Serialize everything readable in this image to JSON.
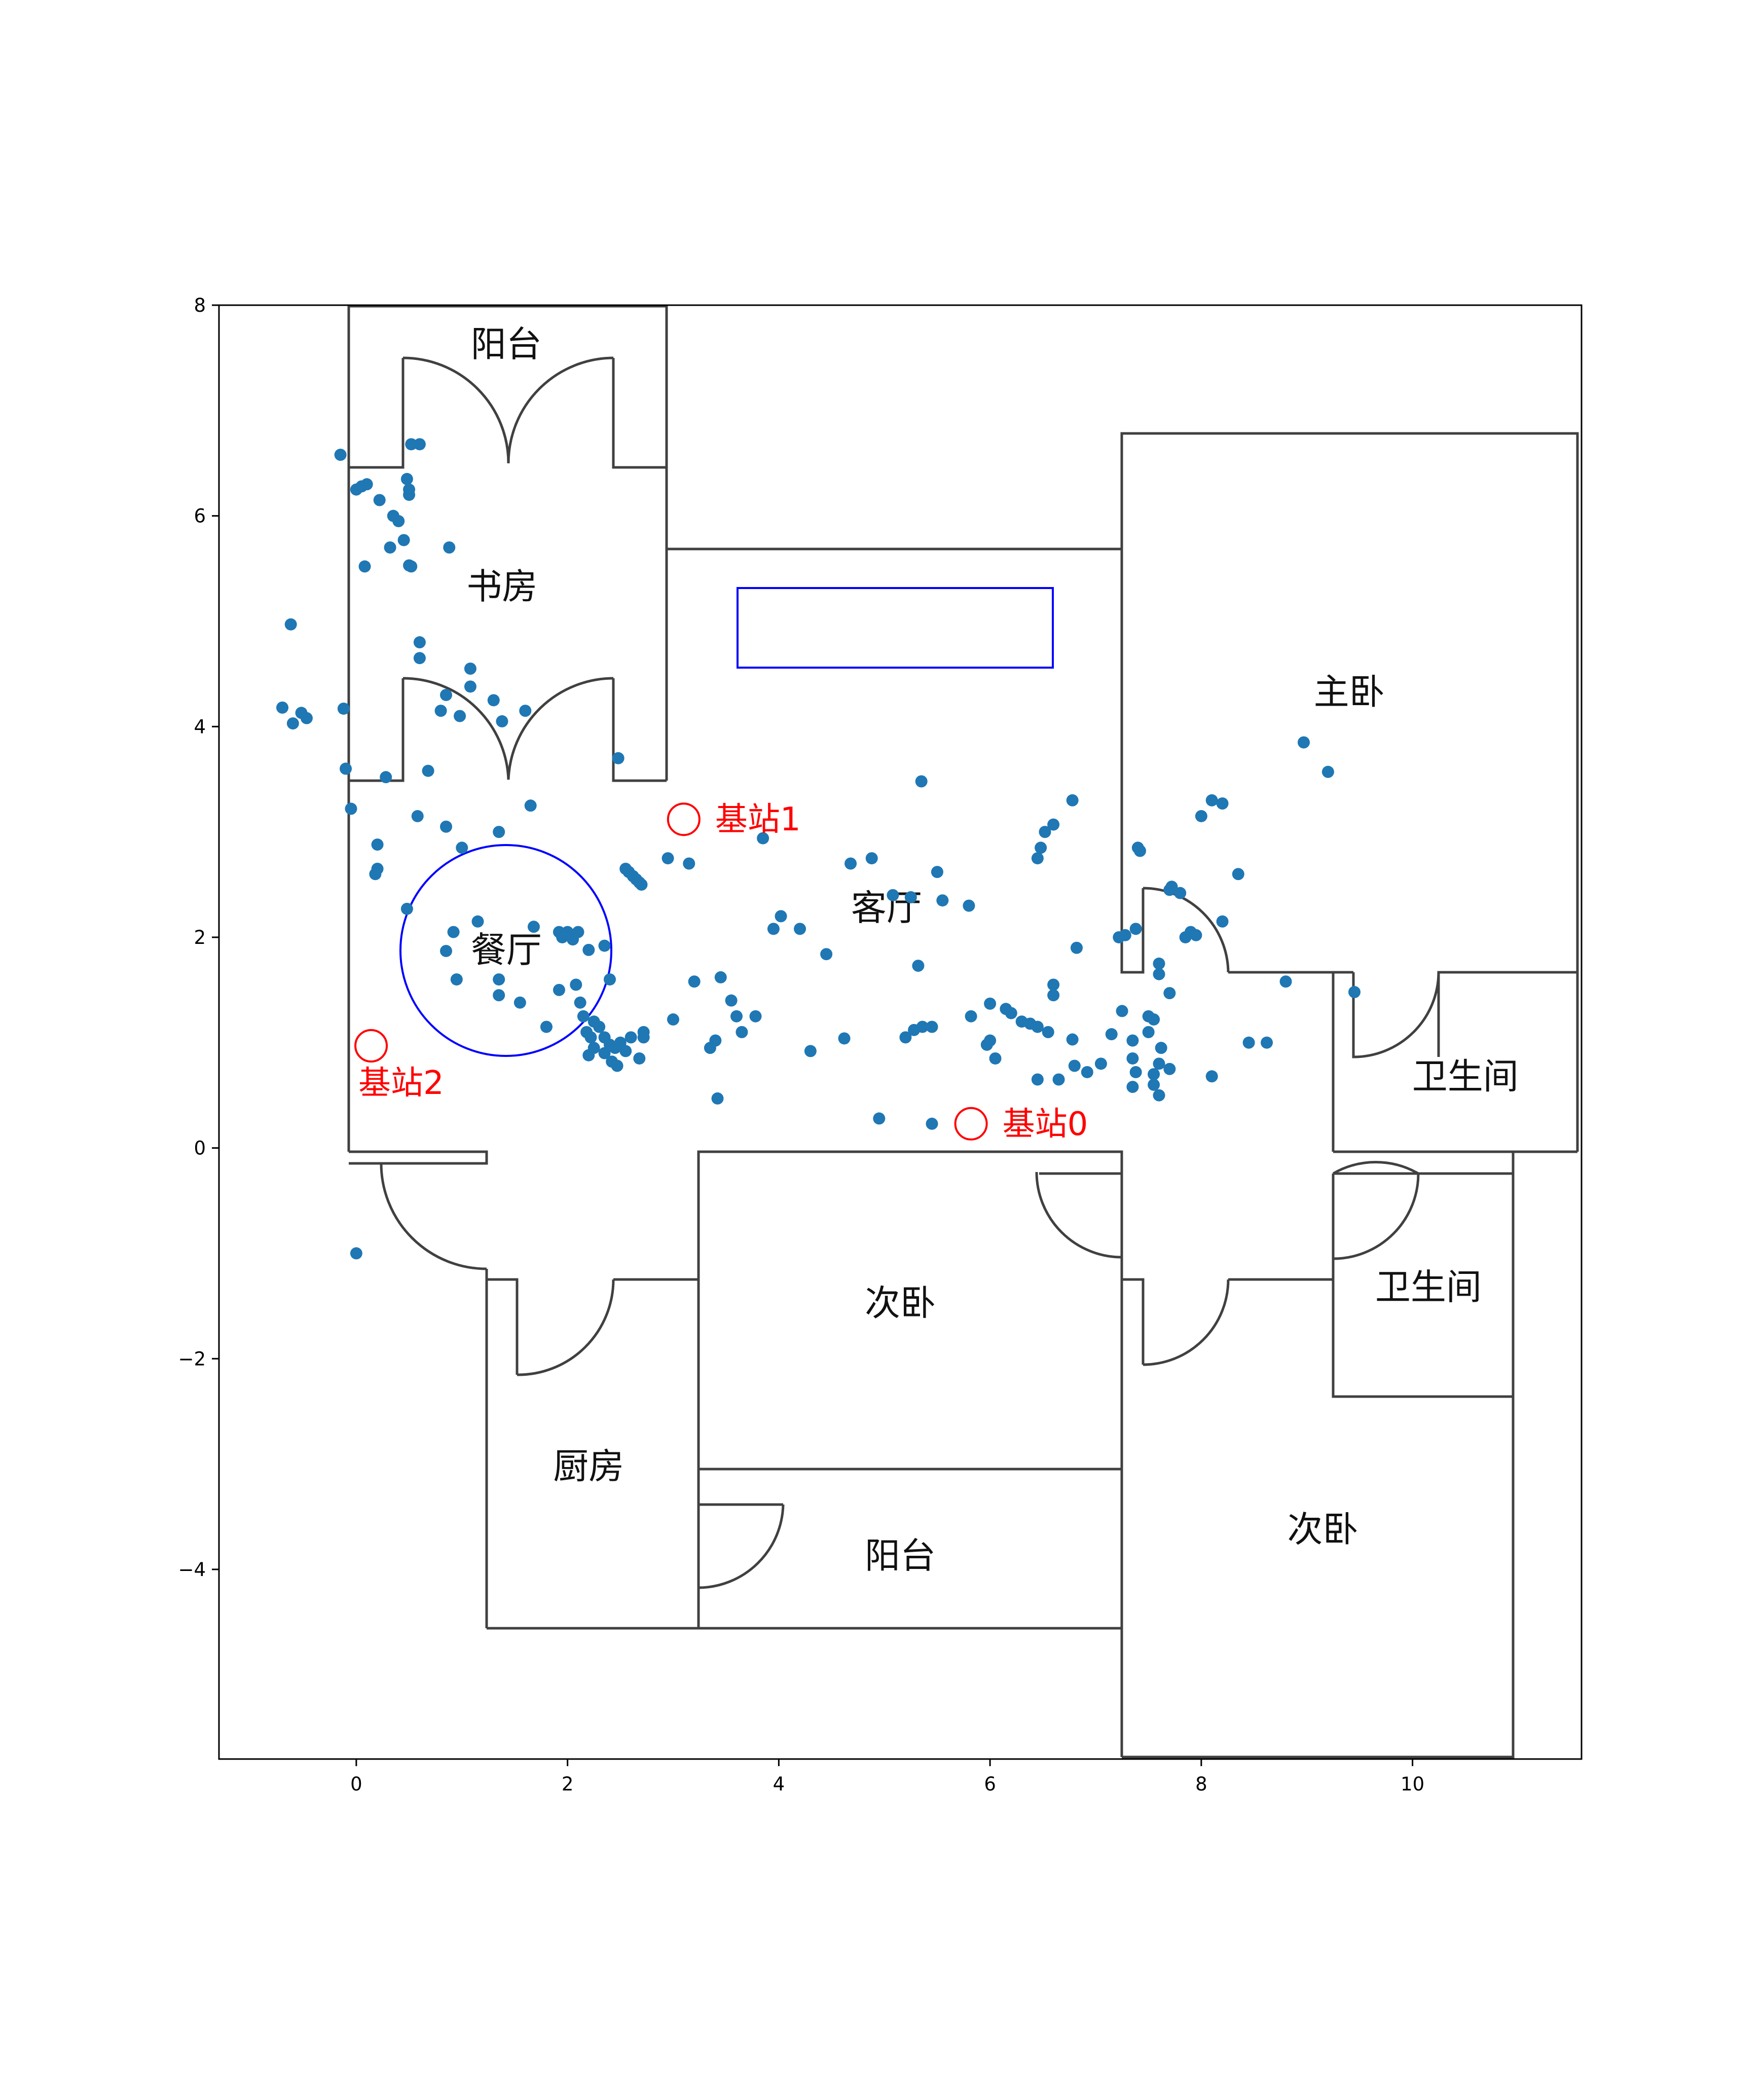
{
  "chart_data": {
    "type": "scatter",
    "title": "",
    "xlabel": "",
    "ylabel": "",
    "xlim": [
      -1.3,
      11.6
    ],
    "ylim": [
      -5.8,
      8.0
    ],
    "grid": false,
    "x_ticks": [
      {
        "value": 0,
        "label": "0"
      },
      {
        "value": 2,
        "label": "2"
      },
      {
        "value": 4,
        "label": "4"
      },
      {
        "value": 6,
        "label": "6"
      },
      {
        "value": 8,
        "label": "8"
      },
      {
        "value": 10,
        "label": "10"
      }
    ],
    "y_ticks": [
      {
        "value": 8,
        "label": "8"
      },
      {
        "value": 6,
        "label": "6"
      },
      {
        "value": 4,
        "label": "4"
      },
      {
        "value": 2,
        "label": "2"
      },
      {
        "value": 0,
        "label": "0"
      },
      {
        "value": -2,
        "label": "−2"
      },
      {
        "value": -4,
        "label": "−4"
      }
    ],
    "colors": {
      "points": "#1f77b4",
      "stations": "#ff0000",
      "walls": "#404040",
      "furniture": "#0000ff"
    },
    "base_stations": [
      {
        "label": "基站0",
        "x": 5.82,
        "y": 0.23
      },
      {
        "label": "基站1",
        "x": 3.1,
        "y": 3.12
      },
      {
        "label": "基站2",
        "x": 0.14,
        "y": 0.97
      }
    ],
    "rooms": [
      {
        "label": "阳台",
        "x": 1.42,
        "y": 7.6
      },
      {
        "label": "书房",
        "x": 1.38,
        "y": 5.3
      },
      {
        "label": "主卧",
        "x": 9.4,
        "y": 4.3
      },
      {
        "label": "客厅",
        "x": 5.02,
        "y": 2.25
      },
      {
        "label": "餐厅",
        "x": 1.42,
        "y": 1.85
      },
      {
        "label": "卫生间",
        "x": 10.5,
        "y": 0.65
      },
      {
        "label": "卫生间",
        "x": 10.15,
        "y": -1.35
      },
      {
        "label": "次卧",
        "x": 5.15,
        "y": -1.5
      },
      {
        "label": "厨房",
        "x": 2.2,
        "y": -3.05
      },
      {
        "label": "阳台",
        "x": 5.15,
        "y": -3.9
      },
      {
        "label": "次卧",
        "x": 9.15,
        "y": -3.65
      }
    ],
    "points": [
      [
        -0.15,
        6.58
      ],
      [
        0.0,
        6.25
      ],
      [
        0.05,
        6.28
      ],
      [
        0.1,
        6.3
      ],
      [
        0.22,
        6.15
      ],
      [
        0.48,
        6.35
      ],
      [
        0.5,
        6.25
      ],
      [
        0.5,
        6.2
      ],
      [
        0.52,
        6.68
      ],
      [
        0.6,
        6.68
      ],
      [
        0.35,
        6.0
      ],
      [
        0.4,
        5.95
      ],
      [
        0.45,
        5.77
      ],
      [
        0.32,
        5.7
      ],
      [
        0.5,
        5.53
      ],
      [
        0.52,
        5.52
      ],
      [
        0.88,
        5.7
      ],
      [
        0.08,
        5.52
      ],
      [
        -0.62,
        4.97
      ],
      [
        -0.7,
        4.18
      ],
      [
        -0.6,
        4.03
      ],
      [
        -0.52,
        4.13
      ],
      [
        -0.47,
        4.08
      ],
      [
        -0.12,
        4.17
      ],
      [
        -0.1,
        3.6
      ],
      [
        -0.05,
        3.22
      ],
      [
        0.28,
        3.52
      ],
      [
        0.6,
        4.8
      ],
      [
        0.6,
        4.65
      ],
      [
        0.68,
        3.58
      ],
      [
        0.8,
        4.15
      ],
      [
        0.85,
        4.3
      ],
      [
        0.98,
        4.1
      ],
      [
        1.08,
        4.55
      ],
      [
        1.08,
        4.38
      ],
      [
        1.3,
        4.25
      ],
      [
        1.38,
        4.05
      ],
      [
        1.6,
        4.15
      ],
      [
        2.48,
        3.7
      ],
      [
        0.58,
        3.15
      ],
      [
        0.2,
        2.88
      ],
      [
        0.2,
        2.65
      ],
      [
        0.18,
        2.6
      ],
      [
        0.85,
        3.05
      ],
      [
        1.0,
        2.85
      ],
      [
        1.35,
        3.0
      ],
      [
        1.65,
        3.25
      ],
      [
        0.48,
        2.27
      ],
      [
        0.85,
        1.87
      ],
      [
        0.92,
        2.05
      ],
      [
        0.95,
        1.6
      ],
      [
        1.15,
        2.15
      ],
      [
        1.35,
        1.6
      ],
      [
        1.35,
        1.45
      ],
      [
        1.55,
        1.38
      ],
      [
        1.68,
        2.1
      ],
      [
        1.92,
        2.05
      ],
      [
        1.95,
        2.0
      ],
      [
        2.0,
        2.05
      ],
      [
        2.05,
        1.98
      ],
      [
        2.1,
        2.05
      ],
      [
        1.92,
        1.5
      ],
      [
        2.08,
        1.55
      ],
      [
        2.12,
        1.38
      ],
      [
        2.15,
        1.25
      ],
      [
        2.18,
        1.1
      ],
      [
        2.22,
        1.05
      ],
      [
        2.25,
        1.2
      ],
      [
        2.2,
        1.88
      ],
      [
        2.4,
        1.6
      ],
      [
        2.35,
        1.92
      ],
      [
        1.8,
        1.15
      ],
      [
        2.55,
        2.65
      ],
      [
        2.58,
        2.62
      ],
      [
        2.62,
        2.58
      ],
      [
        2.65,
        2.55
      ],
      [
        2.68,
        2.52
      ],
      [
        2.7,
        2.5
      ],
      [
        2.3,
        1.15
      ],
      [
        2.35,
        1.05
      ],
      [
        2.4,
        0.98
      ],
      [
        2.45,
        0.95
      ],
      [
        2.5,
        1.0
      ],
      [
        2.55,
        0.92
      ],
      [
        2.6,
        1.05
      ],
      [
        2.68,
        0.85
      ],
      [
        2.72,
        1.1
      ],
      [
        2.25,
        0.95
      ],
      [
        2.35,
        0.9
      ],
      [
        2.42,
        0.82
      ],
      [
        2.47,
        0.78
      ],
      [
        2.2,
        0.88
      ],
      [
        2.72,
        1.05
      ],
      [
        3.0,
        1.22
      ],
      [
        3.2,
        1.58
      ],
      [
        3.45,
        1.62
      ],
      [
        3.55,
        1.4
      ],
      [
        3.6,
        1.25
      ],
      [
        3.65,
        1.1
      ],
      [
        3.4,
        1.02
      ],
      [
        3.35,
        0.95
      ],
      [
        3.78,
        1.25
      ],
      [
        3.42,
        0.47
      ],
      [
        2.95,
        2.75
      ],
      [
        3.15,
        2.7
      ],
      [
        3.85,
        2.94
      ],
      [
        3.95,
        2.08
      ],
      [
        4.02,
        2.2
      ],
      [
        4.2,
        2.08
      ],
      [
        4.45,
        1.84
      ],
      [
        4.3,
        0.92
      ],
      [
        4.62,
        1.04
      ],
      [
        4.68,
        2.7
      ],
      [
        4.88,
        2.75
      ],
      [
        5.08,
        2.4
      ],
      [
        5.25,
        2.38
      ],
      [
        5.5,
        2.62
      ],
      [
        5.55,
        2.35
      ],
      [
        5.8,
        2.3
      ],
      [
        5.35,
        3.48
      ],
      [
        5.32,
        1.73
      ],
      [
        5.2,
        1.05
      ],
      [
        5.28,
        1.12
      ],
      [
        5.36,
        1.15
      ],
      [
        5.45,
        1.15
      ],
      [
        4.95,
        0.28
      ],
      [
        5.45,
        0.23
      ],
      [
        5.82,
        1.25
      ],
      [
        6.0,
        1.37
      ],
      [
        6.15,
        1.32
      ],
      [
        6.2,
        1.28
      ],
      [
        6.3,
        1.2
      ],
      [
        6.38,
        1.18
      ],
      [
        6.45,
        1.15
      ],
      [
        6.55,
        1.1
      ],
      [
        5.97,
        0.98
      ],
      [
        6.0,
        1.02
      ],
      [
        6.05,
        0.85
      ],
      [
        6.45,
        0.65
      ],
      [
        6.65,
        0.65
      ],
      [
        6.6,
        1.55
      ],
      [
        6.6,
        1.45
      ],
      [
        6.82,
        1.9
      ],
      [
        6.78,
        1.03
      ],
      [
        6.8,
        0.78
      ],
      [
        6.92,
        0.72
      ],
      [
        7.05,
        0.8
      ],
      [
        7.15,
        1.08
      ],
      [
        7.25,
        1.3
      ],
      [
        7.35,
        1.02
      ],
      [
        7.35,
        0.85
      ],
      [
        7.5,
        1.25
      ],
      [
        7.5,
        1.1
      ],
      [
        7.55,
        1.22
      ],
      [
        7.55,
        0.7
      ],
      [
        7.6,
        0.8
      ],
      [
        7.62,
        0.95
      ],
      [
        7.38,
        0.72
      ],
      [
        7.35,
        0.58
      ],
      [
        7.55,
        0.6
      ],
      [
        7.6,
        0.5
      ],
      [
        7.7,
        0.75
      ],
      [
        6.45,
        2.75
      ],
      [
        6.48,
        2.85
      ],
      [
        6.52,
        3.0
      ],
      [
        6.6,
        3.07
      ],
      [
        6.78,
        3.3
      ],
      [
        7.22,
        2.0
      ],
      [
        7.28,
        2.02
      ],
      [
        7.38,
        2.08
      ],
      [
        7.4,
        2.85
      ],
      [
        7.42,
        2.82
      ],
      [
        7.6,
        1.75
      ],
      [
        7.6,
        1.65
      ],
      [
        7.7,
        1.47
      ],
      [
        7.7,
        2.45
      ],
      [
        7.72,
        2.48
      ],
      [
        7.8,
        2.42
      ],
      [
        7.85,
        2.0
      ],
      [
        7.9,
        2.05
      ],
      [
        7.95,
        2.02
      ],
      [
        8.0,
        3.15
      ],
      [
        8.1,
        3.3
      ],
      [
        8.2,
        3.27
      ],
      [
        8.2,
        2.15
      ],
      [
        8.35,
        2.6
      ],
      [
        8.45,
        1.0
      ],
      [
        8.62,
        1.0
      ],
      [
        8.8,
        1.58
      ],
      [
        8.97,
        3.85
      ],
      [
        9.2,
        3.57
      ],
      [
        9.45,
        1.48
      ],
      [
        8.1,
        0.68
      ],
      [
        0.0,
        -1.0
      ]
    ]
  }
}
